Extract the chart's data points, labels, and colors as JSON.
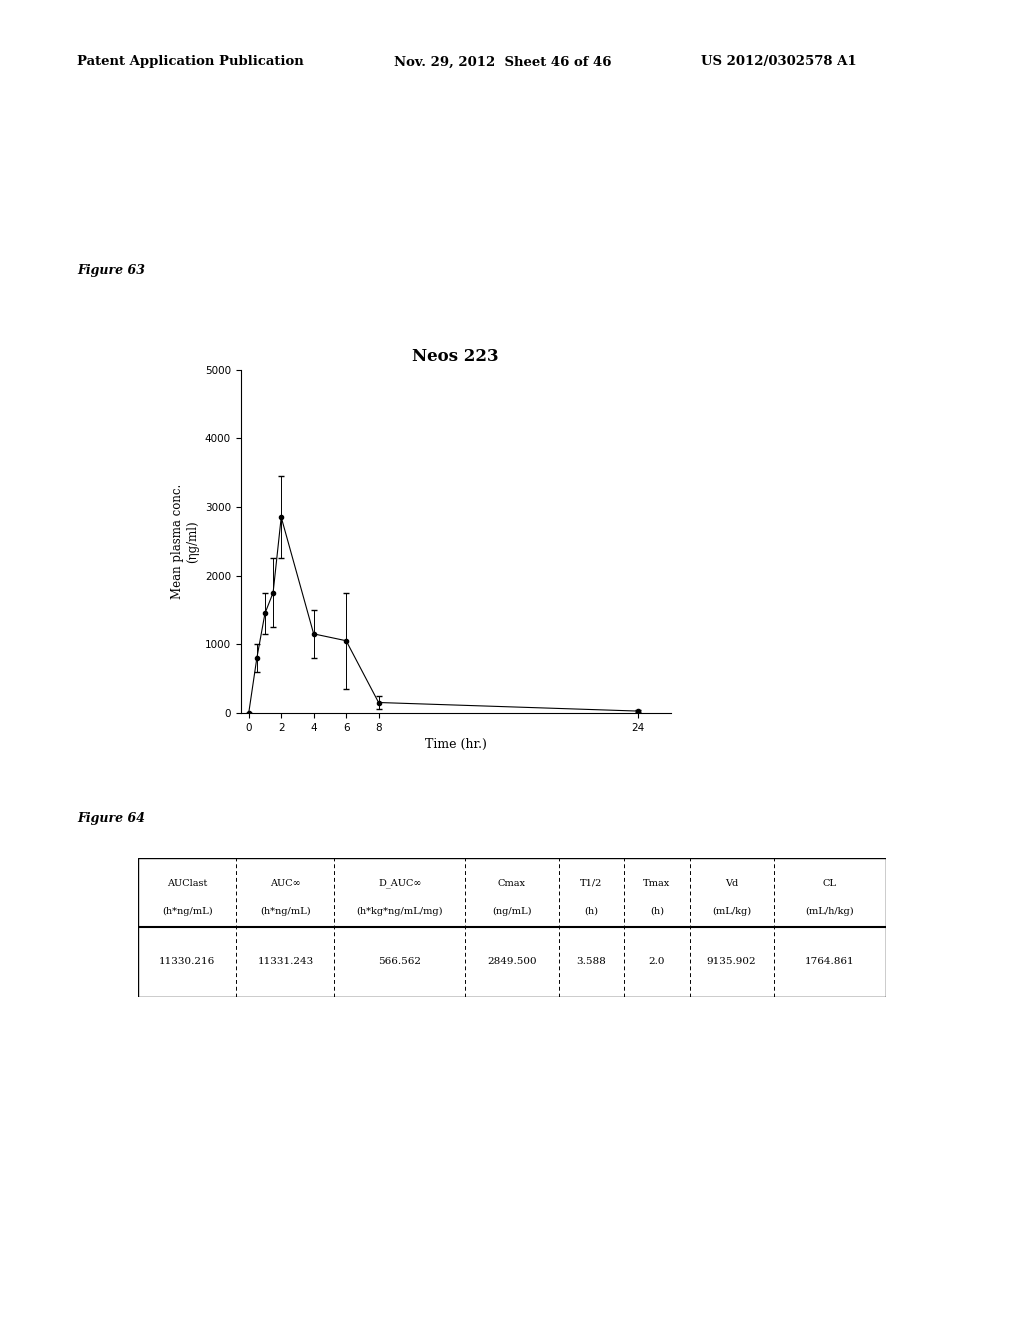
{
  "header_left": "Patent Application Publication",
  "header_mid": "Nov. 29, 2012  Sheet 46 of 46",
  "header_right": "US 2012/0302578 A1",
  "fig63_label": "Figure 63",
  "fig64_label": "Figure 64",
  "chart_title": "Neos 223",
  "xlabel": "Time (hr.)",
  "ylabel": "Mean plasma conc.\n(ηg/ml)",
  "x_data": [
    0,
    0.5,
    1,
    1.5,
    2,
    4,
    6,
    8,
    24
  ],
  "y_data": [
    0,
    800,
    1450,
    1750,
    2849.5,
    1150,
    1050,
    150,
    25
  ],
  "y_err": [
    0,
    200,
    300,
    500,
    600,
    350,
    700,
    100,
    15
  ],
  "ylim": [
    0,
    5000
  ],
  "yticks": [
    0,
    1000,
    2000,
    3000,
    4000,
    5000
  ],
  "xticks": [
    0,
    2,
    4,
    6,
    8,
    24
  ],
  "table_col1_header1": "AUClast",
  "table_col1_header2": "(h*ng/mL)",
  "table_col2_header1": "AUC∞",
  "table_col2_header2": "(h*ng/mL)",
  "table_col3_header1": "D_AUC∞",
  "table_col3_header2": "(h*kg*ng/mL/mg)",
  "table_col4_header1": "Cmax",
  "table_col4_header2": "(ng/mL)",
  "table_col5_header1": "T1/2",
  "table_col5_header2": "(h)",
  "table_col6_header1": "Tmax",
  "table_col6_header2": "(h)",
  "table_col7_header1": "Vd",
  "table_col7_header2": "(mL/kg)",
  "table_col8_header1": "CL",
  "table_col8_header2": "(mL/h/kg)",
  "table_values": [
    "11330.216",
    "11331.243",
    "566.562",
    "2849.500",
    "3.588",
    "2.0",
    "9135.902",
    "1764.861"
  ],
  "bg_color": "#ffffff",
  "line_color": "#000000",
  "marker_color": "#000000"
}
